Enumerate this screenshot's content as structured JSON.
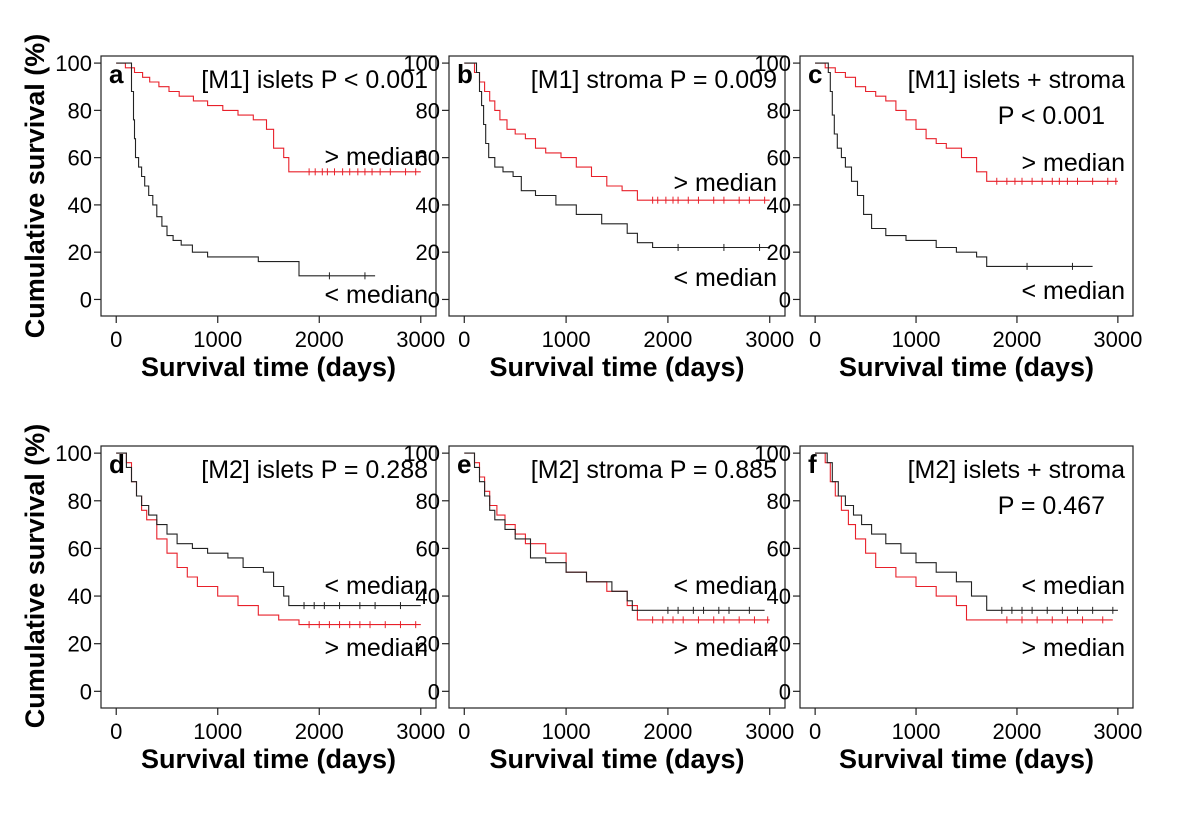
{
  "figure": {
    "ylabel": "Cumulative survival (%)",
    "xlabel": "Survival time (days)"
  },
  "colors": {
    "high": "#e8202a",
    "low": "#222222",
    "frame": "#222222"
  },
  "chart_data": [
    {
      "type": "line",
      "panel": "a",
      "letter": "a",
      "title_line1": "[M1] islets  P < 0.001",
      "title_line2": "",
      "label_top": "> median",
      "label_bottom": "< median",
      "xlabel": "Survival time (days)",
      "ylabel": "Cumulative survival (%)",
      "xticks": [
        0,
        1000,
        2000,
        3000
      ],
      "yticks": [
        0,
        20,
        40,
        60,
        80,
        100
      ],
      "xlim": [
        -150,
        3150
      ],
      "ylim": [
        -7,
        103
      ],
      "series": [
        {
          "name": "> median",
          "color_key": "high",
          "x": [
            0,
            90,
            180,
            260,
            330,
            420,
            520,
            620,
            760,
            900,
            1050,
            1200,
            1350,
            1480,
            1550,
            1650,
            1700,
            3000
          ],
          "y": [
            100,
            98,
            96,
            94,
            92,
            90,
            88,
            86,
            84,
            82,
            80,
            78,
            76,
            72,
            64,
            60,
            54,
            54
          ],
          "censor_x": [
            1900,
            1960,
            2030,
            2080,
            2150,
            2230,
            2300,
            2380,
            2450,
            2520,
            2600,
            2700,
            2850,
            2950
          ]
        },
        {
          "name": "< median",
          "color_key": "low",
          "x": [
            0,
            150,
            170,
            180,
            190,
            220,
            250,
            280,
            320,
            360,
            400,
            450,
            500,
            560,
            640,
            750,
            900,
            1400,
            1800,
            2550
          ],
          "y": [
            100,
            88,
            76,
            68,
            60,
            56,
            52,
            48,
            44,
            40,
            35,
            31,
            27,
            25,
            23,
            20,
            18,
            16,
            10,
            10
          ],
          "censor_x": [
            2100,
            2450
          ]
        }
      ]
    },
    {
      "type": "line",
      "panel": "b",
      "letter": "b",
      "title_line1": "[M1] stroma  P = 0.009",
      "title_line2": "",
      "label_top": "> median",
      "label_bottom": "< median",
      "xlabel": "Survival time (days)",
      "ylabel": "Cumulative survival (%)",
      "xticks": [
        0,
        1000,
        2000,
        3000
      ],
      "yticks": [
        0,
        20,
        40,
        60,
        80,
        100
      ],
      "xlim": [
        -150,
        3150
      ],
      "ylim": [
        -7,
        103
      ],
      "series": [
        {
          "name": "> median",
          "color_key": "high",
          "x": [
            0,
            100,
            150,
            200,
            250,
            300,
            350,
            420,
            500,
            600,
            700,
            800,
            950,
            1100,
            1250,
            1400,
            1550,
            1700,
            3000
          ],
          "y": [
            100,
            96,
            92,
            88,
            84,
            80,
            76,
            72,
            70,
            68,
            64,
            62,
            60,
            56,
            52,
            48,
            46,
            42,
            42
          ],
          "censor_x": [
            1850,
            1900,
            1980,
            2050,
            2100,
            2200,
            2300,
            2450,
            2550,
            2700,
            2800,
            2950
          ]
        },
        {
          "name": "< median",
          "color_key": "low",
          "x": [
            0,
            120,
            150,
            170,
            190,
            210,
            240,
            300,
            380,
            480,
            560,
            700,
            900,
            1100,
            1350,
            1600,
            1700,
            1850,
            3000
          ],
          "y": [
            100,
            96,
            88,
            82,
            74,
            66,
            60,
            56,
            54,
            52,
            46,
            44,
            40,
            36,
            32,
            28,
            24,
            22,
            22
          ],
          "censor_x": [
            2100,
            2550,
            2900
          ]
        }
      ]
    },
    {
      "type": "line",
      "panel": "c",
      "letter": "c",
      "title_line1": "[M1] islets + stroma",
      "title_line2": "P < 0.001",
      "label_top": "> median",
      "label_bottom": "< median",
      "xlabel": "Survival time (days)",
      "ylabel": "Cumulative survival (%)",
      "xticks": [
        0,
        1000,
        2000,
        3000
      ],
      "yticks": [
        0,
        20,
        40,
        60,
        80,
        100
      ],
      "xlim": [
        -150,
        3150
      ],
      "ylim": [
        -7,
        103
      ],
      "series": [
        {
          "name": "> median",
          "color_key": "high",
          "x": [
            0,
            100,
            200,
            300,
            400,
            500,
            600,
            700,
            800,
            900,
            1000,
            1100,
            1200,
            1300,
            1450,
            1600,
            1700,
            3000
          ],
          "y": [
            100,
            98,
            96,
            94,
            90,
            88,
            86,
            84,
            80,
            76,
            72,
            68,
            66,
            64,
            60,
            54,
            50,
            50
          ],
          "censor_x": [
            1800,
            1900,
            1980,
            2050,
            2150,
            2250,
            2350,
            2420,
            2500,
            2600,
            2750,
            2900,
            2980
          ]
        },
        {
          "name": "< median",
          "color_key": "low",
          "x": [
            0,
            130,
            150,
            170,
            190,
            220,
            260,
            300,
            360,
            420,
            480,
            560,
            700,
            900,
            1200,
            1400,
            1600,
            1700,
            2750
          ],
          "y": [
            100,
            96,
            88,
            78,
            70,
            64,
            60,
            56,
            50,
            44,
            36,
            30,
            27,
            25,
            22,
            20,
            18,
            14,
            14
          ],
          "censor_x": [
            2100,
            2550
          ]
        }
      ]
    },
    {
      "type": "line",
      "panel": "d",
      "letter": "d",
      "title_line1": "[M2] islets  P = 0.288",
      "title_line2": "",
      "label_top": "< median",
      "label_bottom": "> median",
      "xlabel": "Survival time (days)",
      "ylabel": "Cumulative survival (%)",
      "xticks": [
        0,
        1000,
        2000,
        3000
      ],
      "yticks": [
        0,
        20,
        40,
        60,
        80,
        100
      ],
      "xlim": [
        -150,
        3150
      ],
      "ylim": [
        -7,
        103
      ],
      "series": [
        {
          "name": "> median",
          "color_key": "high",
          "x": [
            0,
            100,
            150,
            200,
            250,
            300,
            400,
            500,
            600,
            700,
            800,
            1000,
            1200,
            1400,
            1600,
            1800,
            3000
          ],
          "y": [
            100,
            96,
            88,
            82,
            76,
            72,
            64,
            58,
            52,
            48,
            44,
            40,
            36,
            32,
            30,
            28,
            28
          ],
          "censor_x": [
            1900,
            2000,
            2100,
            2200,
            2300,
            2400,
            2500,
            2650,
            2800,
            2950
          ]
        },
        {
          "name": "< median",
          "color_key": "low",
          "x": [
            0,
            100,
            150,
            200,
            250,
            320,
            400,
            500,
            600,
            750,
            900,
            1100,
            1250,
            1450,
            1550,
            1650,
            1700,
            3000
          ],
          "y": [
            100,
            94,
            88,
            82,
            78,
            74,
            70,
            66,
            62,
            60,
            58,
            56,
            52,
            50,
            44,
            40,
            36,
            36
          ],
          "censor_x": [
            1850,
            1950,
            2050,
            2200,
            2400,
            2550,
            2800
          ]
        }
      ]
    },
    {
      "type": "line",
      "panel": "e",
      "letter": "e",
      "title_line1": "[M2] stroma  P = 0.885",
      "title_line2": "",
      "label_top": "< median",
      "label_bottom": "> median",
      "xlabel": "Survival time (days)",
      "ylabel": "Cumulative survival (%)",
      "xticks": [
        0,
        1000,
        2000,
        3000
      ],
      "yticks": [
        0,
        20,
        40,
        60,
        80,
        100
      ],
      "xlim": [
        -150,
        3150
      ],
      "ylim": [
        -7,
        103
      ],
      "series": [
        {
          "name": "> median",
          "color_key": "high",
          "x": [
            0,
            100,
            150,
            200,
            250,
            320,
            400,
            500,
            600,
            800,
            1000,
            1200,
            1400,
            1600,
            1700,
            3000
          ],
          "y": [
            100,
            96,
            90,
            84,
            78,
            74,
            70,
            66,
            62,
            58,
            50,
            46,
            42,
            36,
            30,
            30
          ],
          "censor_x": [
            1850,
            1950,
            2050,
            2150,
            2300,
            2450,
            2550,
            2700,
            2850,
            2980
          ]
        },
        {
          "name": "< median",
          "color_key": "low",
          "x": [
            0,
            100,
            150,
            200,
            250,
            300,
            400,
            500,
            650,
            800,
            1000,
            1200,
            1450,
            1600,
            1650,
            2950
          ],
          "y": [
            100,
            94,
            88,
            82,
            76,
            72,
            68,
            64,
            56,
            54,
            50,
            46,
            42,
            38,
            34,
            34
          ],
          "censor_x": [
            2000,
            2100,
            2250,
            2350,
            2500,
            2600,
            2800
          ]
        }
      ]
    },
    {
      "type": "line",
      "panel": "f",
      "letter": "f",
      "title_line1": "[M2] islets + stroma",
      "title_line2": "P = 0.467",
      "label_top": "< median",
      "label_bottom": "> median",
      "xlabel": "Survival time (days)",
      "ylabel": "Cumulative survival (%)",
      "xticks": [
        0,
        1000,
        2000,
        3000
      ],
      "yticks": [
        0,
        20,
        40,
        60,
        80,
        100
      ],
      "xlim": [
        -150,
        3150
      ],
      "ylim": [
        -7,
        103
      ],
      "series": [
        {
          "name": "> median",
          "color_key": "high",
          "x": [
            0,
            100,
            150,
            200,
            260,
            330,
            400,
            500,
            600,
            800,
            1000,
            1200,
            1400,
            1500,
            2950
          ],
          "y": [
            100,
            96,
            88,
            82,
            76,
            70,
            64,
            58,
            52,
            48,
            44,
            40,
            36,
            30,
            30
          ],
          "censor_x": [
            1900,
            2050,
            2200,
            2350,
            2500,
            2650,
            2850
          ]
        },
        {
          "name": "< median",
          "color_key": "low",
          "x": [
            0,
            120,
            170,
            230,
            300,
            380,
            460,
            560,
            700,
            850,
            1000,
            1200,
            1400,
            1550,
            1700,
            3000
          ],
          "y": [
            100,
            96,
            88,
            82,
            78,
            74,
            70,
            66,
            62,
            58,
            54,
            50,
            46,
            40,
            34,
            34
          ],
          "censor_x": [
            1850,
            1950,
            2050,
            2150,
            2300,
            2450,
            2600,
            2750,
            2950
          ]
        }
      ]
    }
  ]
}
